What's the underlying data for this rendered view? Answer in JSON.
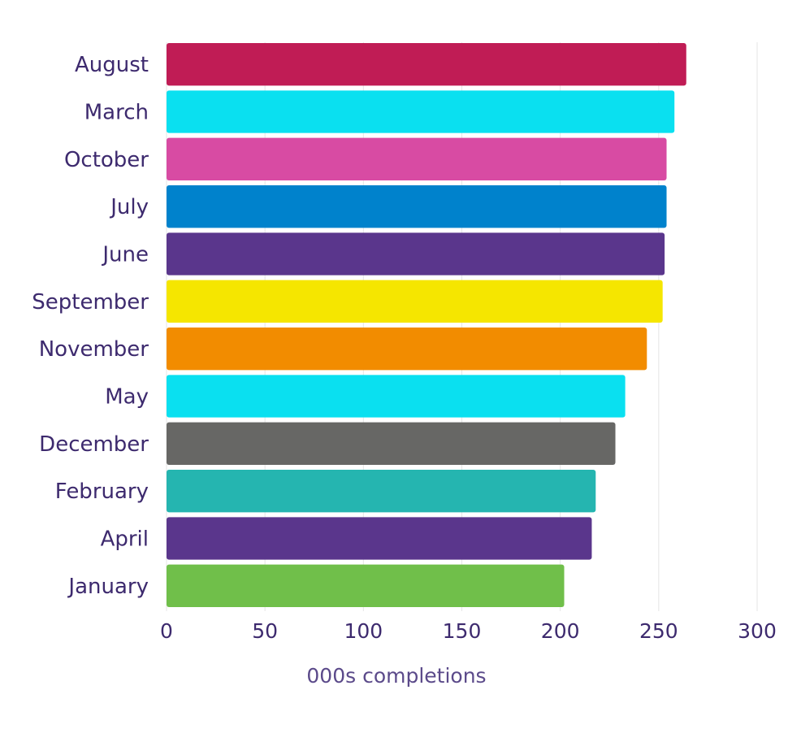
{
  "chart_data": {
    "type": "bar",
    "orientation": "horizontal",
    "categories": [
      "August",
      "March",
      "October",
      "July",
      "June",
      "September",
      "November",
      "May",
      "December",
      "February",
      "April",
      "January"
    ],
    "values": [
      264,
      258,
      254,
      254,
      253,
      252,
      244,
      233,
      228,
      218,
      216,
      202
    ],
    "colors": [
      "#c01c55",
      "#0ae0f0",
      "#d84ba3",
      "#0082cc",
      "#5a368c",
      "#f5e600",
      "#f28c00",
      "#0ae0f0",
      "#676765",
      "#25b5b0",
      "#5a368c",
      "#70bf4a"
    ],
    "xlabel": "000s  completions",
    "ylabel": "",
    "xlim": [
      0,
      300
    ],
    "xticks": [
      0,
      50,
      100,
      150,
      200,
      250,
      300
    ],
    "grid": "vertical",
    "legend": "none"
  }
}
